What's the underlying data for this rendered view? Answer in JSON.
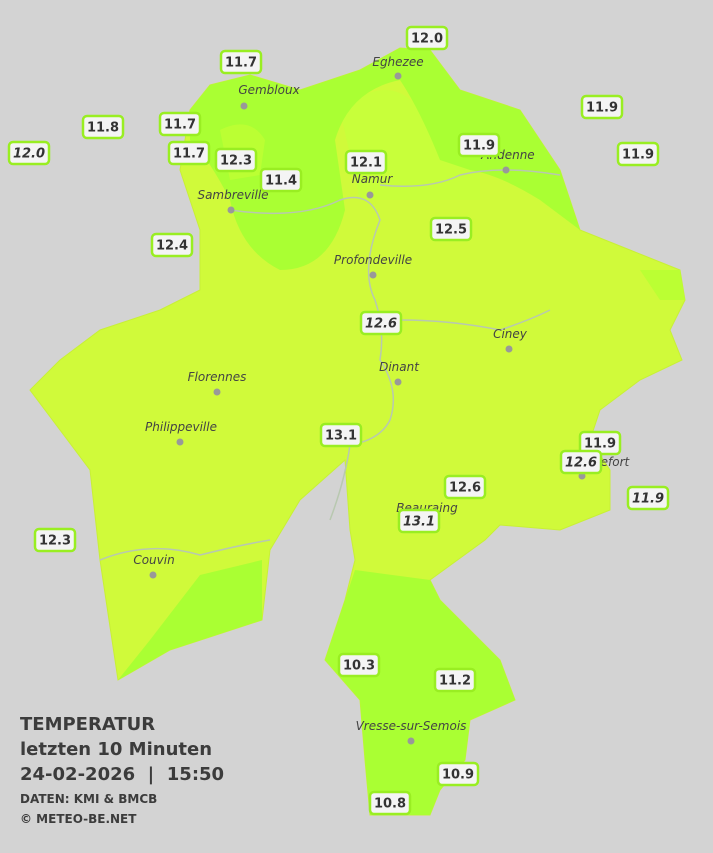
{
  "title": {
    "heading": "TEMPERATUR",
    "period": "letzten 10 Minuten",
    "timestamp": "24-02-2026  |  15:50",
    "source": "DATEN: KMI & BMCB",
    "copyright": "© METEO-BE.NET"
  },
  "cities": [
    "Eghezee",
    "Gembloux",
    "Andenne",
    "Namur",
    "Sambreville",
    "Profondeville",
    "Ciney",
    "Dinant",
    "Florennes",
    "Philippeville",
    "Rochefort",
    "Beauraing",
    "Couvin",
    "Vresse-sur-Semois"
  ],
  "stations": [
    "12.0",
    "11.7",
    "11.8",
    "11.7",
    "12.0",
    "11.7",
    "12.3",
    "11.4",
    "12.1",
    "11.9",
    "11.9",
    "11.9",
    "12.4",
    "12.5",
    "12.6",
    "13.1",
    "11.9",
    "12.6",
    "11.9",
    "12.6",
    "13.1",
    "12.3",
    "10.3",
    "11.2",
    "10.9",
    "10.8"
  ]
}
